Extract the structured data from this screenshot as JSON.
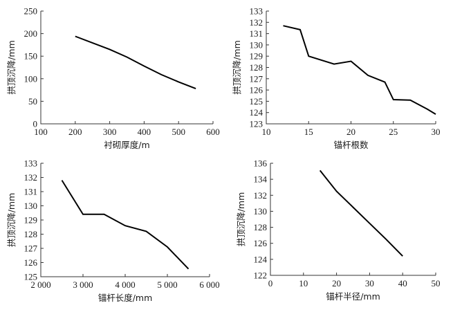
{
  "chart_data": [
    {
      "type": "line",
      "title": "",
      "xlabel": "衬砌厚度/m",
      "ylabel": "拱顶沉降/mm",
      "xlim": [
        100,
        600
      ],
      "ylim": [
        0,
        250
      ],
      "xticks": [
        100,
        200,
        300,
        400,
        500,
        600
      ],
      "xtick_labels": [
        "100",
        "200",
        "300",
        "400",
        "500",
        "600"
      ],
      "yticks": [
        0,
        50,
        100,
        150,
        200,
        250
      ],
      "ytick_labels": [
        "0",
        "50",
        "100",
        "150",
        "200",
        "250"
      ],
      "grid": false,
      "series": [
        {
          "name": "拱顶沉降",
          "x": [
            200,
            300,
            350,
            400,
            450,
            500,
            550
          ],
          "y": [
            194,
            165,
            148,
            128,
            109,
            93,
            78
          ]
        }
      ]
    },
    {
      "type": "line",
      "title": "",
      "xlabel": "锚杆根数",
      "ylabel": "拱顶沉降/mm",
      "xlim": [
        10,
        30
      ],
      "ylim": [
        123,
        133
      ],
      "xticks": [
        10,
        15,
        20,
        25,
        30
      ],
      "xtick_labels": [
        "10",
        "15",
        "20",
        "25",
        "30"
      ],
      "yticks": [
        123,
        124,
        125,
        126,
        127,
        128,
        129,
        130,
        131,
        132,
        133
      ],
      "ytick_labels": [
        "123",
        "124",
        "125",
        "126",
        "127",
        "128",
        "129",
        "130",
        "131",
        "132",
        "133"
      ],
      "grid": false,
      "series": [
        {
          "name": "拱顶沉降",
          "x": [
            12,
            14,
            15,
            18,
            20,
            22,
            24,
            25,
            27,
            29,
            30
          ],
          "y": [
            131.7,
            131.35,
            129.0,
            128.3,
            128.55,
            127.3,
            126.7,
            125.15,
            125.1,
            124.3,
            123.85
          ]
        }
      ]
    },
    {
      "type": "line",
      "title": "",
      "xlabel": "锚杆长度/mm",
      "ylabel": "拱顶沉降/mm",
      "xlim": [
        2000,
        6000
      ],
      "ylim": [
        125,
        133
      ],
      "xticks": [
        2000,
        3000,
        4000,
        5000,
        6000
      ],
      "xtick_labels": [
        "2 000",
        "3 000",
        "4 000",
        "5 000",
        "6 000"
      ],
      "yticks": [
        125,
        126,
        127,
        128,
        129,
        130,
        131,
        132,
        133
      ],
      "ytick_labels": [
        "125",
        "126",
        "127",
        "128",
        "129",
        "130",
        "131",
        "132",
        "133"
      ],
      "grid": false,
      "series": [
        {
          "name": "拱顶沉降",
          "x": [
            2500,
            3000,
            3500,
            4000,
            4500,
            5000,
            5500
          ],
          "y": [
            131.8,
            129.4,
            129.4,
            128.6,
            128.2,
            127.1,
            125.55
          ]
        }
      ]
    },
    {
      "type": "line",
      "title": "",
      "xlabel": "锚杆半径/mm",
      "ylabel": "拱顶沉降/mm",
      "xlim": [
        0,
        50
      ],
      "ylim": [
        122,
        136
      ],
      "xticks": [
        0,
        10,
        20,
        30,
        40,
        50
      ],
      "xtick_labels": [
        "0",
        "10",
        "20",
        "30",
        "40",
        "50"
      ],
      "yticks": [
        122,
        124,
        126,
        128,
        130,
        132,
        134,
        136
      ],
      "ytick_labels": [
        "122",
        "124",
        "126",
        "128",
        "130",
        "132",
        "134",
        "136"
      ],
      "grid": false,
      "series": [
        {
          "name": "拱顶沉降",
          "x": [
            15,
            20,
            25,
            30,
            35,
            40
          ],
          "y": [
            135.1,
            132.5,
            130.5,
            128.5,
            126.5,
            124.4
          ]
        }
      ]
    }
  ]
}
